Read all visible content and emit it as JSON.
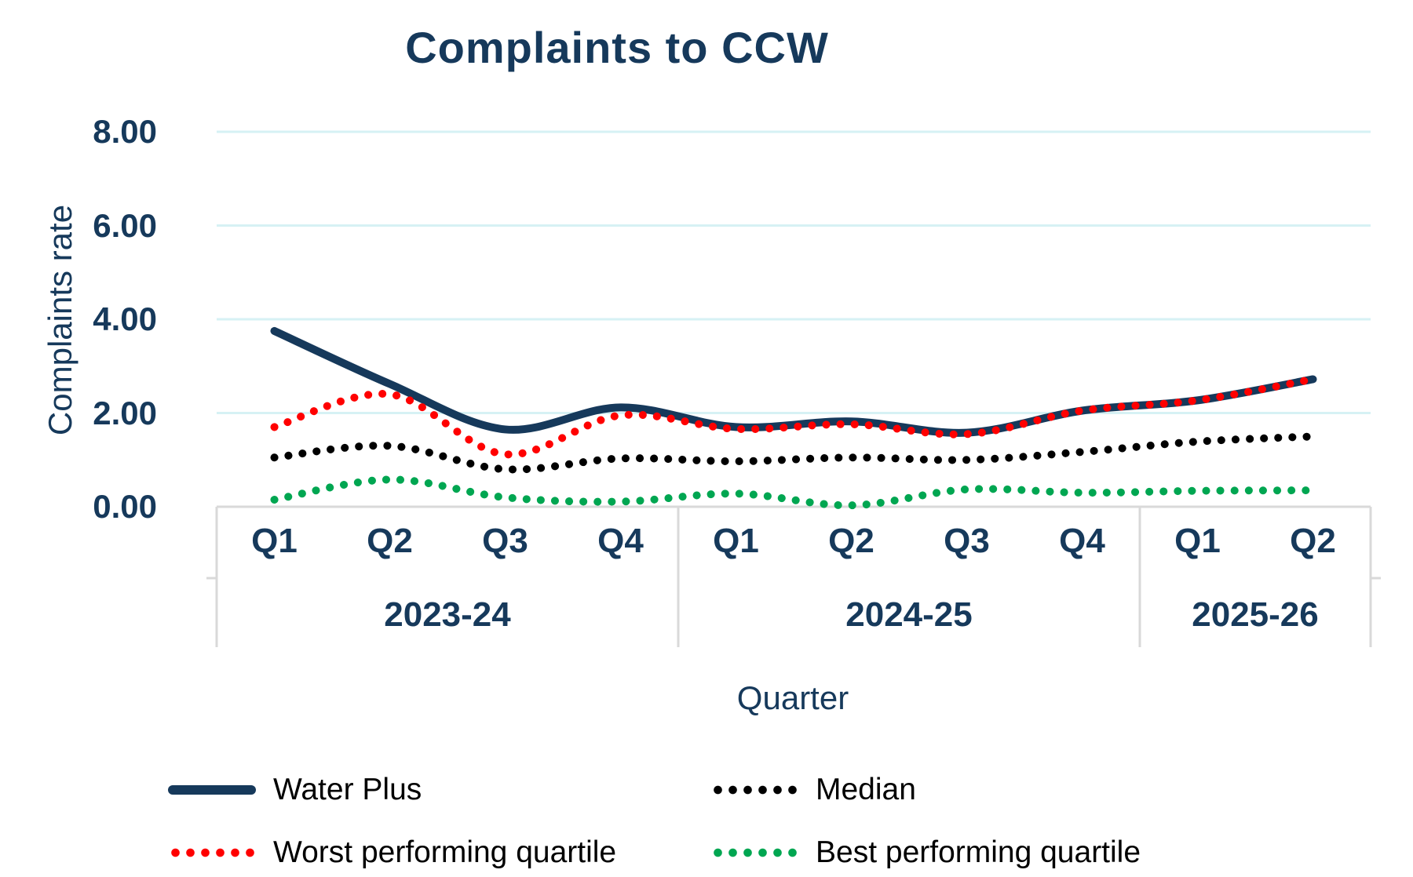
{
  "title": "Complaints to CCW",
  "y_axis": {
    "title": "Complaints rate",
    "tick_labels": [
      "0.00",
      "2.00",
      "4.00",
      "6.00",
      "8.00"
    ],
    "min": 0,
    "max": 8
  },
  "x_axis": {
    "title": "Quarter"
  },
  "chart_data": {
    "type": "line",
    "categories": [
      "Q1",
      "Q2",
      "Q3",
      "Q4",
      "Q1",
      "Q2",
      "Q3",
      "Q4",
      "Q1",
      "Q2"
    ],
    "category_groups": [
      {
        "label": "2023-24",
        "span": 4
      },
      {
        "label": "2024-25",
        "span": 4
      },
      {
        "label": "2025-26",
        "span": 2
      }
    ],
    "series": [
      {
        "name": "Water Plus",
        "color": "#16395B",
        "style": "solid",
        "values": [
          3.75,
          2.62,
          1.65,
          2.12,
          1.7,
          1.82,
          1.58,
          2.05,
          2.27,
          2.72
        ]
      },
      {
        "name": "Median",
        "color": "#000000",
        "style": "dotted",
        "values": [
          1.05,
          1.3,
          0.8,
          1.03,
          0.97,
          1.05,
          1.0,
          1.17,
          1.39,
          1.5
        ]
      },
      {
        "name": "Worst performing quartile",
        "color": "#FF0000",
        "style": "dotted",
        "values": [
          1.7,
          2.4,
          1.12,
          1.95,
          1.66,
          1.76,
          1.55,
          2.05,
          2.27,
          2.72
        ]
      },
      {
        "name": "Best performing quartile",
        "color": "#00A651",
        "style": "dotted",
        "values": [
          0.15,
          0.58,
          0.2,
          0.11,
          0.28,
          0.03,
          0.37,
          0.3,
          0.34,
          0.35
        ]
      }
    ],
    "ylim": [
      0,
      8
    ],
    "grid": true,
    "legend_position": "bottom",
    "colors": {
      "gridline": "#D6F1F4",
      "axis_box": "#D9D9D9",
      "label_text": "#16395B"
    }
  }
}
